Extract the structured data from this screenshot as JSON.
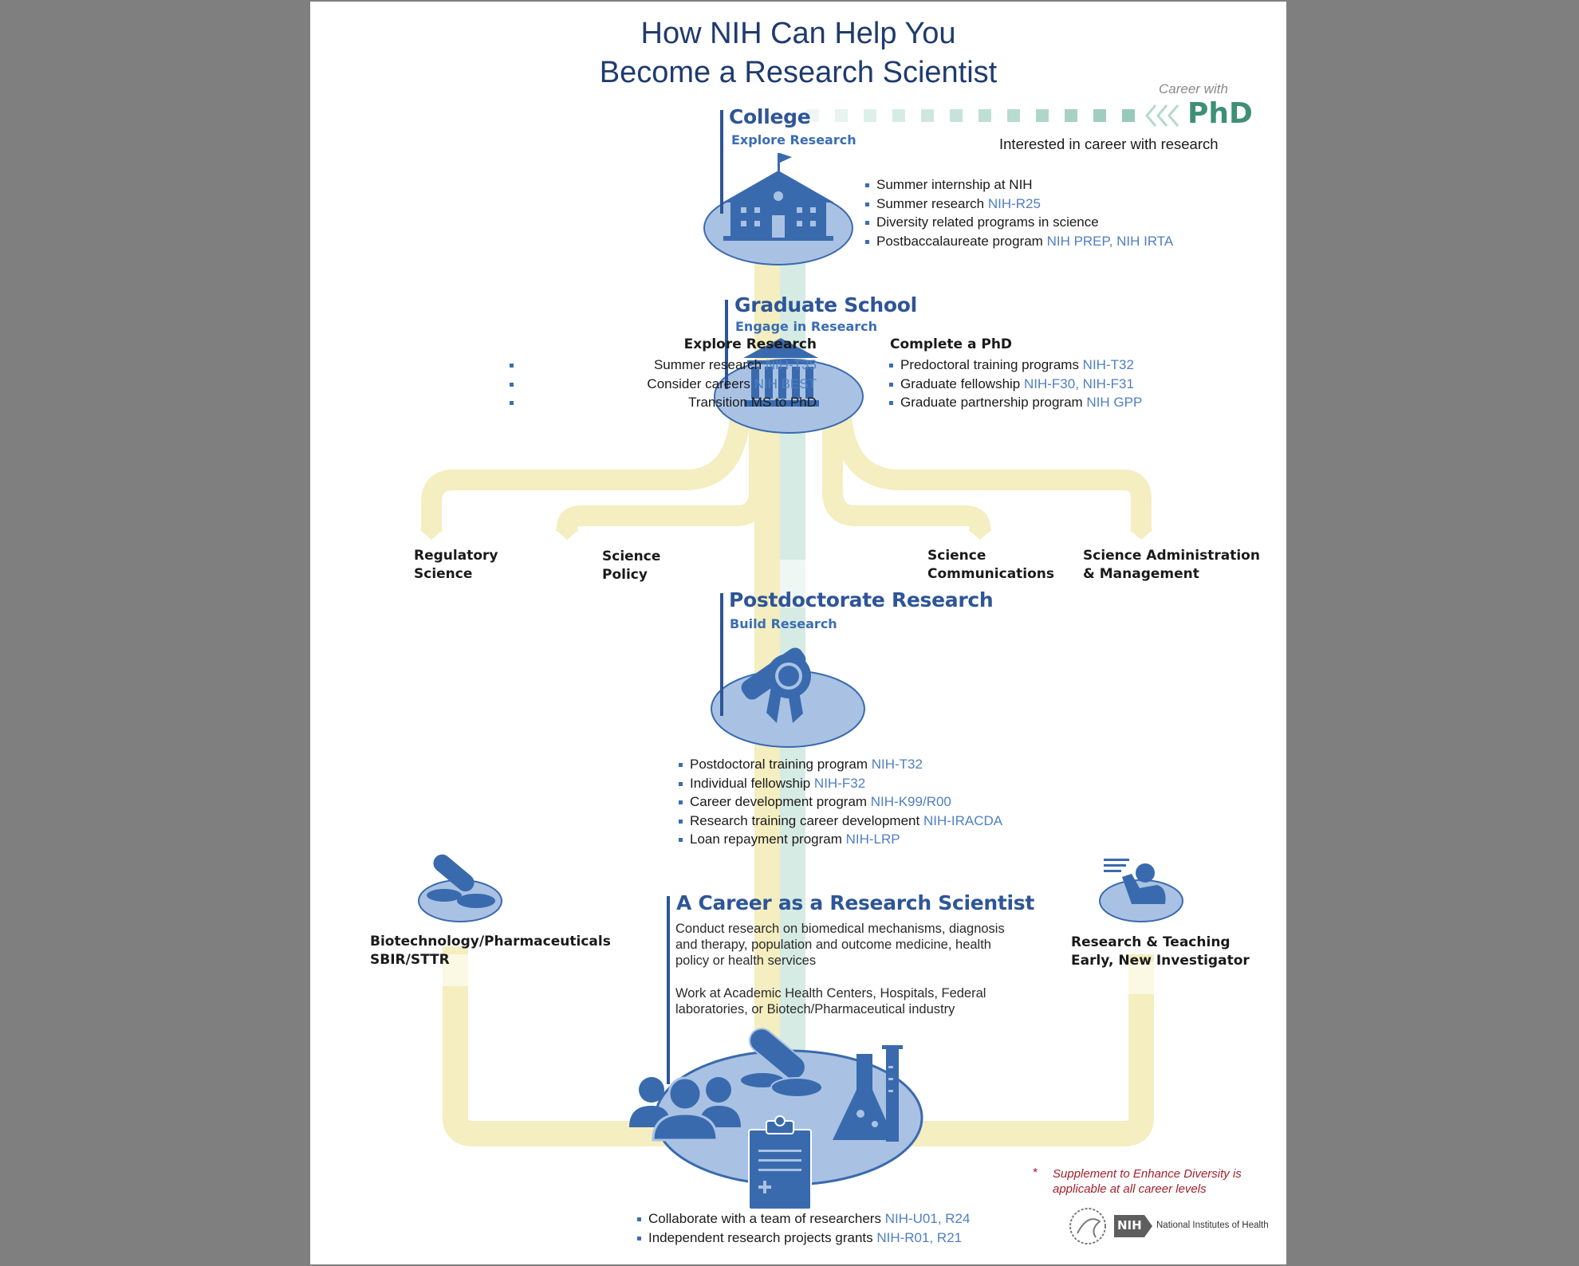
{
  "title": {
    "line1": "How NIH Can Help You",
    "line2": "Become a Research Scientist"
  },
  "phd_path": {
    "career_with": "Career with",
    "phd": "PhD",
    "caption": "Interested in career with research"
  },
  "college": {
    "title": "College",
    "subtitle": "Explore Research",
    "items": [
      {
        "text": "Summer internship at NIH",
        "code": ""
      },
      {
        "text": "Summer research ",
        "code": "NIH-R25"
      },
      {
        "text": "Diversity related programs in science",
        "code": ""
      },
      {
        "text": "Postbaccalaureate program ",
        "code": "NIH PREP, NIH IRTA"
      }
    ]
  },
  "graduate": {
    "title": "Graduate School",
    "subtitle": "Engage in Research",
    "left_heading": "Explore Research",
    "left_items": [
      {
        "text": "Summer research ",
        "code": "NIH-T35"
      },
      {
        "text": "Consider careers ",
        "code": "NIH BEST"
      },
      {
        "text": "Transition MS to PhD",
        "code": ""
      }
    ],
    "right_heading": "Complete a PhD",
    "right_items": [
      {
        "text": "Predoctoral training programs ",
        "code": "NIH-T32"
      },
      {
        "text": "Graduate fellowship ",
        "code": "NIH-F30, NIH-F31"
      },
      {
        "text": "Graduate partnership program ",
        "code": "NIH GPP"
      }
    ]
  },
  "branches": [
    {
      "line1": "Regulatory",
      "line2": "Science"
    },
    {
      "line1": "Science",
      "line2": "Policy"
    },
    {
      "line1": "Science",
      "line2": "Communications"
    },
    {
      "line1": "Science Administration",
      "line2": "& Management"
    }
  ],
  "postdoc": {
    "title": "Postdoctorate Research",
    "subtitle": "Build Research",
    "items": [
      {
        "text": "Postdoctoral training program ",
        "code": "NIH-T32"
      },
      {
        "text": "Individual fellowship ",
        "code": "NIH-F32"
      },
      {
        "text": "Career development program ",
        "code": "NIH-K99/R00"
      },
      {
        "text": "Research training career development ",
        "code": "NIH-IRACDA"
      },
      {
        "text": "Loan repayment program ",
        "code": "NIH-LRP"
      }
    ]
  },
  "biotech": {
    "line1": "Biotechnology/Pharmaceuticals",
    "line2": "SBIR/STTR"
  },
  "teaching": {
    "line1": "Research & Teaching",
    "line2": "Early, New Investigator"
  },
  "career": {
    "title": "A Career as a Research Scientist",
    "paragraph1": "Conduct research on biomedical mechanisms, diagnosis and therapy, population and outcome medicine, health policy or health services",
    "paragraph2": "Work at Academic Health Centers, Hospitals, Federal laboratories, or Biotech/Pharmaceutical industry",
    "items": [
      {
        "text": "Collaborate with a team of researchers  ",
        "code": "NIH-U01, R24"
      },
      {
        "text": "Independent research projects grants ",
        "code": "NIH-R01, R21"
      }
    ]
  },
  "diversity_note": {
    "asterisk": "*",
    "text": "Supplement to Enhance Diversity is applicable at all career levels"
  },
  "footer": {
    "nih_badge": "NIH",
    "org_name": "National Institutes of Health"
  },
  "colors": {
    "navy": "#1f3b6e",
    "blue": "#2e5597",
    "link_blue": "#4f7fc1",
    "disc": "#a9c2e3",
    "icon": "#3a6aae",
    "path_yellow": "#f4eec0",
    "path_teal": "#cfe6df",
    "phd_green": "#3f8f77",
    "note_red": "#a31f2c"
  }
}
